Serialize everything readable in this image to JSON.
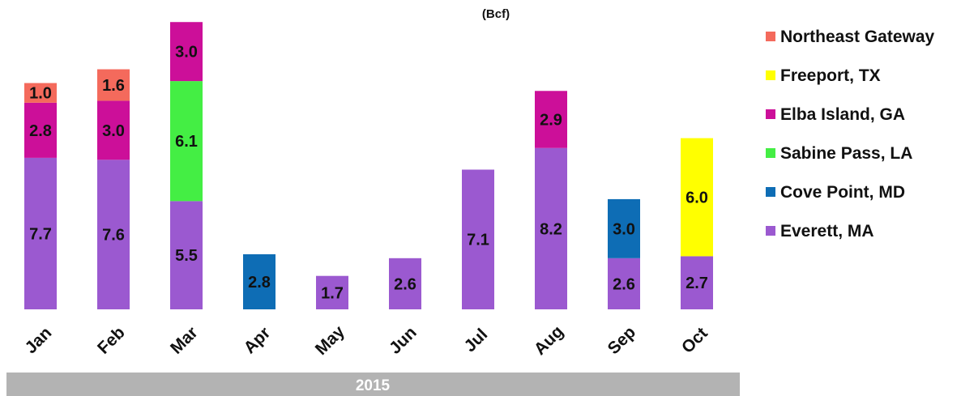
{
  "chart_data": {
    "type": "bar",
    "stacked": true,
    "subtitle": "(Bcf)",
    "year_label": "2015",
    "categories": [
      "Jan",
      "Feb",
      "Mar",
      "Apr",
      "May",
      "Jun",
      "Jul",
      "Aug",
      "Sep",
      "Oct"
    ],
    "ylim": [
      0,
      15
    ],
    "grid": false,
    "legend_position": "right",
    "series": [
      {
        "name": "Everett, MA",
        "color": "#9b59d0",
        "values": [
          7.7,
          7.6,
          5.5,
          null,
          1.7,
          2.6,
          7.1,
          8.2,
          2.6,
          2.7
        ]
      },
      {
        "name": "Cove Point, MD",
        "color": "#0e6db5",
        "values": [
          null,
          null,
          null,
          2.8,
          null,
          null,
          null,
          null,
          3.0,
          null
        ]
      },
      {
        "name": "Sabine Pass, LA",
        "color": "#44ee44",
        "values": [
          null,
          null,
          6.1,
          null,
          null,
          null,
          null,
          null,
          null,
          null
        ]
      },
      {
        "name": "Elba Island, GA",
        "color": "#cc0f99",
        "values": [
          2.8,
          3.0,
          3.0,
          null,
          null,
          null,
          null,
          2.9,
          null,
          null
        ]
      },
      {
        "name": "Freeport, TX",
        "color": "#ffff00",
        "values": [
          null,
          null,
          null,
          null,
          null,
          null,
          null,
          null,
          null,
          6.0
        ]
      },
      {
        "name": "Northeast Gateway",
        "color": "#f46a5c",
        "values": [
          1.0,
          1.6,
          null,
          null,
          null,
          null,
          null,
          null,
          null,
          null
        ]
      }
    ],
    "data_labels": {
      "Jul": ""
    }
  }
}
